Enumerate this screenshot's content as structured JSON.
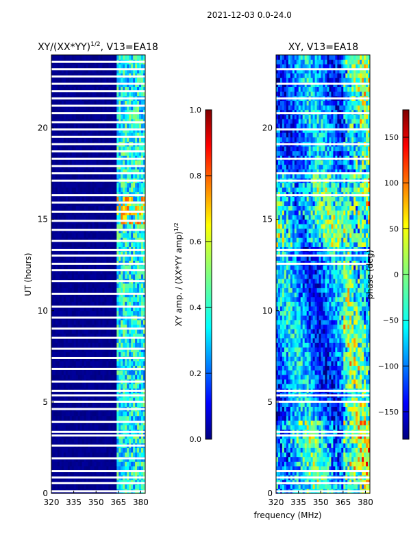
{
  "suptitle": "2021-12-03 0.0-24.0",
  "chart_data": [
    {
      "type": "heatmap",
      "title": "XY/(XX*YY)",
      "title_exponent": "1/2",
      "title_suffix": ", V13=EA18",
      "xlabel": "",
      "ylabel": "UT (hours)",
      "xlim": [
        320,
        383
      ],
      "ylim": [
        0,
        24
      ],
      "xticks": [
        "320",
        "335",
        "350",
        "365",
        "380"
      ],
      "xtick_values": [
        320,
        335,
        350,
        365,
        380
      ],
      "yticks": [
        "0",
        "5",
        "10",
        "15",
        "20"
      ],
      "ytick_values": [
        0,
        5,
        10,
        15,
        20
      ],
      "colorbar": {
        "label": "XY amp. / (XX*YY amp)",
        "label_exponent": "1/2",
        "ticks": [
          "0.0",
          "0.2",
          "0.4",
          "0.6",
          "0.8",
          "1.0"
        ],
        "tick_values": [
          0.0,
          0.2,
          0.4,
          0.6,
          0.8,
          1.0
        ],
        "range": [
          0.0,
          1.0
        ]
      },
      "active_band_mhz": [
        364,
        383
      ],
      "background_value": 0.0,
      "flagged_hours": [
        0.1,
        0.55,
        0.85,
        1.2,
        1.9,
        2.6,
        3.15,
        3.35,
        3.9,
        4.6,
        5.0,
        5.35,
        5.6,
        6.1,
        6.8,
        7.4,
        7.9,
        8.5,
        9.0,
        9.6,
        10.2,
        10.9,
        11.6,
        12.2,
        12.55,
        13.0,
        13.3,
        13.8,
        14.4,
        14.9,
        15.4,
        15.9,
        16.3,
        17.1,
        17.5,
        17.9,
        18.3,
        18.7,
        19.1,
        19.5,
        19.9,
        20.3,
        20.8,
        21.2,
        21.6,
        22.0,
        22.4,
        22.8,
        23.2,
        23.6
      ]
    },
    {
      "type": "heatmap",
      "title": "XY, V13=EA18",
      "xlabel": "frequency (MHz)",
      "ylabel": "",
      "xlim": [
        320,
        383
      ],
      "ylim": [
        0,
        24
      ],
      "xticks": [
        "320",
        "335",
        "350",
        "365",
        "380"
      ],
      "xtick_values": [
        320,
        335,
        350,
        365,
        380
      ],
      "yticks": [
        "0",
        "5",
        "10",
        "15",
        "20"
      ],
      "ytick_values": [
        0,
        5,
        10,
        15,
        20
      ],
      "colorbar": {
        "label": "phase (deg)",
        "ticks": [
          "−150",
          "−100",
          "−50",
          "0",
          "50",
          "100",
          "150"
        ],
        "tick_values": [
          -150,
          -100,
          -50,
          0,
          50,
          100,
          150
        ],
        "range": [
          -180,
          180
        ]
      },
      "flagged_hours": [
        0.1,
        0.55,
        0.85,
        1.2,
        3.15,
        3.35,
        5.0,
        5.35,
        5.6,
        12.55,
        13.0,
        13.3,
        16.3,
        17.1,
        17.5,
        18.3,
        19.1,
        19.9,
        20.8,
        21.6,
        22.4,
        23.2
      ]
    }
  ],
  "colors": {
    "jet_stops": [
      "#00007f",
      "#0000ff",
      "#007fff",
      "#00ffff",
      "#7fff7f",
      "#ffff00",
      "#ff7f00",
      "#ff0000",
      "#7f0000"
    ],
    "flag": "#ffffff",
    "axis": "#000000"
  }
}
